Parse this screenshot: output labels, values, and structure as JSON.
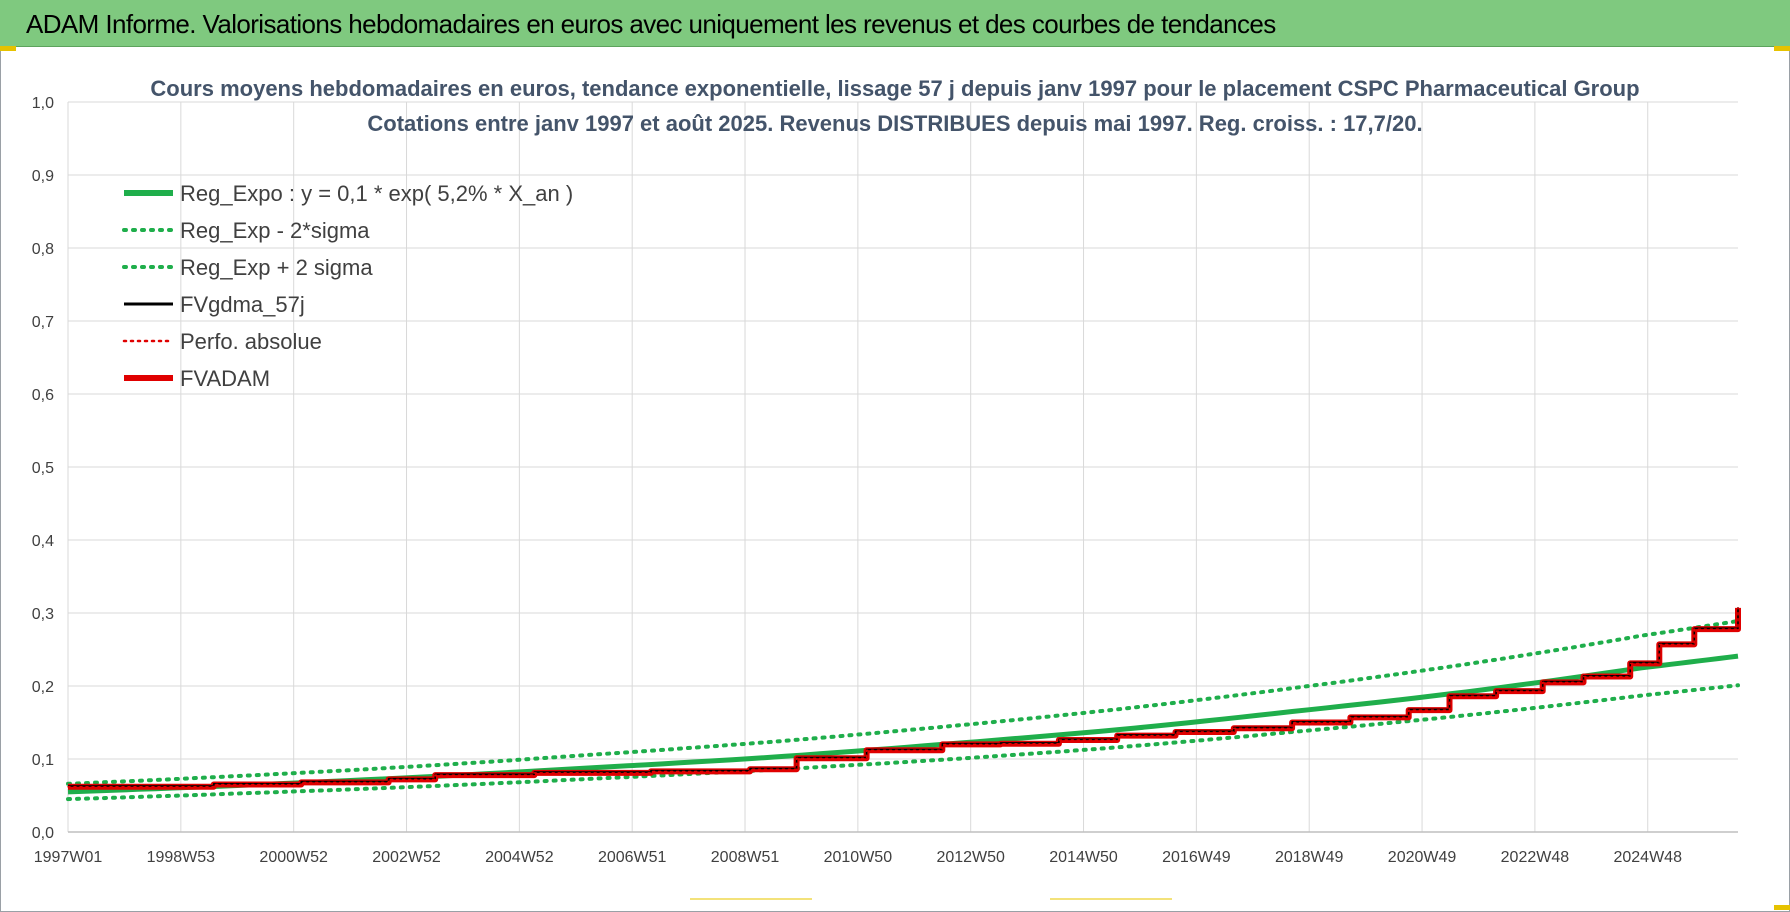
{
  "banner": {
    "title": "ADAM Informe. Valorisations hebdomadaires en euros avec uniquement les revenus et des courbes de tendances"
  },
  "colors": {
    "banner_bg": "#7fc97f",
    "reg_expo": "#1fae4b",
    "sigma_bands": "#1fae4b",
    "fvgdma": "#000000",
    "perfo": "#e00000",
    "fvadam": "#e00000",
    "grid": "#d9d9d9"
  },
  "chart_data": {
    "type": "line",
    "title_lines": [
      "Cours moyens hebdomadaires en euros, tendance exponentielle, lissage 57 j depuis janv 1997 pour le placement CSPC Pharmaceutical Group",
      "Cotations entre janv 1997 et août 2025. Revenus DISTRIBUES depuis mai 1997. Reg. croiss. : 17,7/20."
    ],
    "x_tick_labels": [
      "1997W01",
      "1998W53",
      "2000W52",
      "2002W52",
      "2004W52",
      "2006W51",
      "2008W51",
      "2010W50",
      "2012W50",
      "2014W50",
      "2016W49",
      "2018W49",
      "2020W49",
      "2022W48",
      "2024W48"
    ],
    "x_range_years": [
      1997.0,
      2025.65
    ],
    "y_tick_labels": [
      "0,0",
      "0,1",
      "0,2",
      "0,3",
      "0,4",
      "0,5",
      "0,6",
      "0,7",
      "0,8",
      "0,9",
      "1,0"
    ],
    "ylim": [
      0,
      1.0
    ],
    "grid": true,
    "legend_position": "top-left",
    "legend": [
      {
        "label": "Reg_Expo : y = 0,1 * exp( 5,2% *  X_an )",
        "style": "solid-thick",
        "color": "#1fae4b"
      },
      {
        "label": "Reg_Exp - 2*sigma",
        "style": "dotted",
        "color": "#1fae4b"
      },
      {
        "label": "Reg_Exp + 2 sigma",
        "style": "dotted",
        "color": "#1fae4b"
      },
      {
        "label": "FVgdma_57j",
        "style": "solid",
        "color": "#000000"
      },
      {
        "label": "Perfo. absolue",
        "style": "dotted-thin",
        "color": "#e00000"
      },
      {
        "label": "FVADAM",
        "style": "solid-thick",
        "color": "#e00000"
      }
    ],
    "series": [
      {
        "name": "Reg_Expo : y = 0,1 * exp( 5,2% *  X_an )",
        "x": [
          1997,
          2000,
          2003,
          2006,
          2009,
          2012,
          2015,
          2018,
          2021,
          2024,
          2025.65
        ],
        "y": [
          0.055,
          0.064,
          0.075,
          0.088,
          0.102,
          0.12,
          0.14,
          0.165,
          0.192,
          0.225,
          0.241
        ]
      },
      {
        "name": "Reg_Exp - 2*sigma",
        "x": [
          1997,
          2000,
          2003,
          2006,
          2009,
          2012,
          2015,
          2018,
          2021,
          2024,
          2025.65
        ],
        "y": [
          0.045,
          0.053,
          0.062,
          0.073,
          0.085,
          0.099,
          0.116,
          0.137,
          0.16,
          0.187,
          0.201
        ]
      },
      {
        "name": "Reg_Exp + 2 sigma",
        "x": [
          1997,
          2000,
          2003,
          2006,
          2009,
          2012,
          2015,
          2018,
          2021,
          2024,
          2025.65
        ],
        "y": [
          0.066,
          0.077,
          0.09,
          0.106,
          0.123,
          0.144,
          0.168,
          0.197,
          0.23,
          0.269,
          0.289
        ]
      },
      {
        "name": "FVADAM",
        "x": [
          1997.0,
          1998.0,
          1999.5,
          2001.0,
          2002.5,
          2003.3,
          2005.0,
          2007.0,
          2008.7,
          2009.5,
          2010.7,
          2012.0,
          2013.0,
          2014.0,
          2015.0,
          2016.0,
          2017.0,
          2018.0,
          2019.0,
          2020.0,
          2020.7,
          2021.5,
          2022.3,
          2023.0,
          2023.8,
          2024.3,
          2024.9,
          2025.65
        ],
        "y": [
          0.062,
          0.062,
          0.065,
          0.068,
          0.072,
          0.078,
          0.081,
          0.083,
          0.086,
          0.101,
          0.112,
          0.12,
          0.121,
          0.126,
          0.132,
          0.137,
          0.142,
          0.15,
          0.157,
          0.167,
          0.186,
          0.193,
          0.205,
          0.213,
          0.231,
          0.257,
          0.278,
          0.307
        ]
      },
      {
        "name": "FVgdma_57j",
        "x": [
          1997.0,
          1998.0,
          1999.5,
          2001.0,
          2002.5,
          2003.3,
          2005.0,
          2007.0,
          2008.7,
          2009.5,
          2010.7,
          2012.0,
          2013.0,
          2014.0,
          2015.0,
          2016.0,
          2017.0,
          2018.0,
          2019.0,
          2020.0,
          2020.7,
          2021.5,
          2022.3,
          2023.0,
          2023.8,
          2024.3,
          2024.9,
          2025.65
        ],
        "y": [
          0.063,
          0.063,
          0.066,
          0.069,
          0.073,
          0.079,
          0.082,
          0.084,
          0.087,
          0.102,
          0.113,
          0.121,
          0.122,
          0.127,
          0.133,
          0.138,
          0.143,
          0.151,
          0.158,
          0.168,
          0.187,
          0.194,
          0.206,
          0.214,
          0.232,
          0.258,
          0.279,
          0.308
        ]
      },
      {
        "name": "Perfo. absolue",
        "x": [
          1997.0,
          1998.0,
          1999.5,
          2001.0,
          2002.5,
          2003.3,
          2005.0,
          2007.0,
          2008.7,
          2009.5,
          2010.7,
          2012.0,
          2013.0,
          2014.0,
          2015.0,
          2016.0,
          2017.0,
          2018.0,
          2019.0,
          2020.0,
          2020.7,
          2021.5,
          2022.3,
          2023.0,
          2023.8,
          2024.3,
          2024.9,
          2025.65
        ],
        "y": [
          0.062,
          0.062,
          0.065,
          0.068,
          0.072,
          0.078,
          0.081,
          0.083,
          0.086,
          0.101,
          0.112,
          0.12,
          0.121,
          0.126,
          0.132,
          0.137,
          0.142,
          0.15,
          0.157,
          0.167,
          0.186,
          0.193,
          0.205,
          0.213,
          0.231,
          0.257,
          0.278,
          0.307
        ]
      }
    ]
  }
}
